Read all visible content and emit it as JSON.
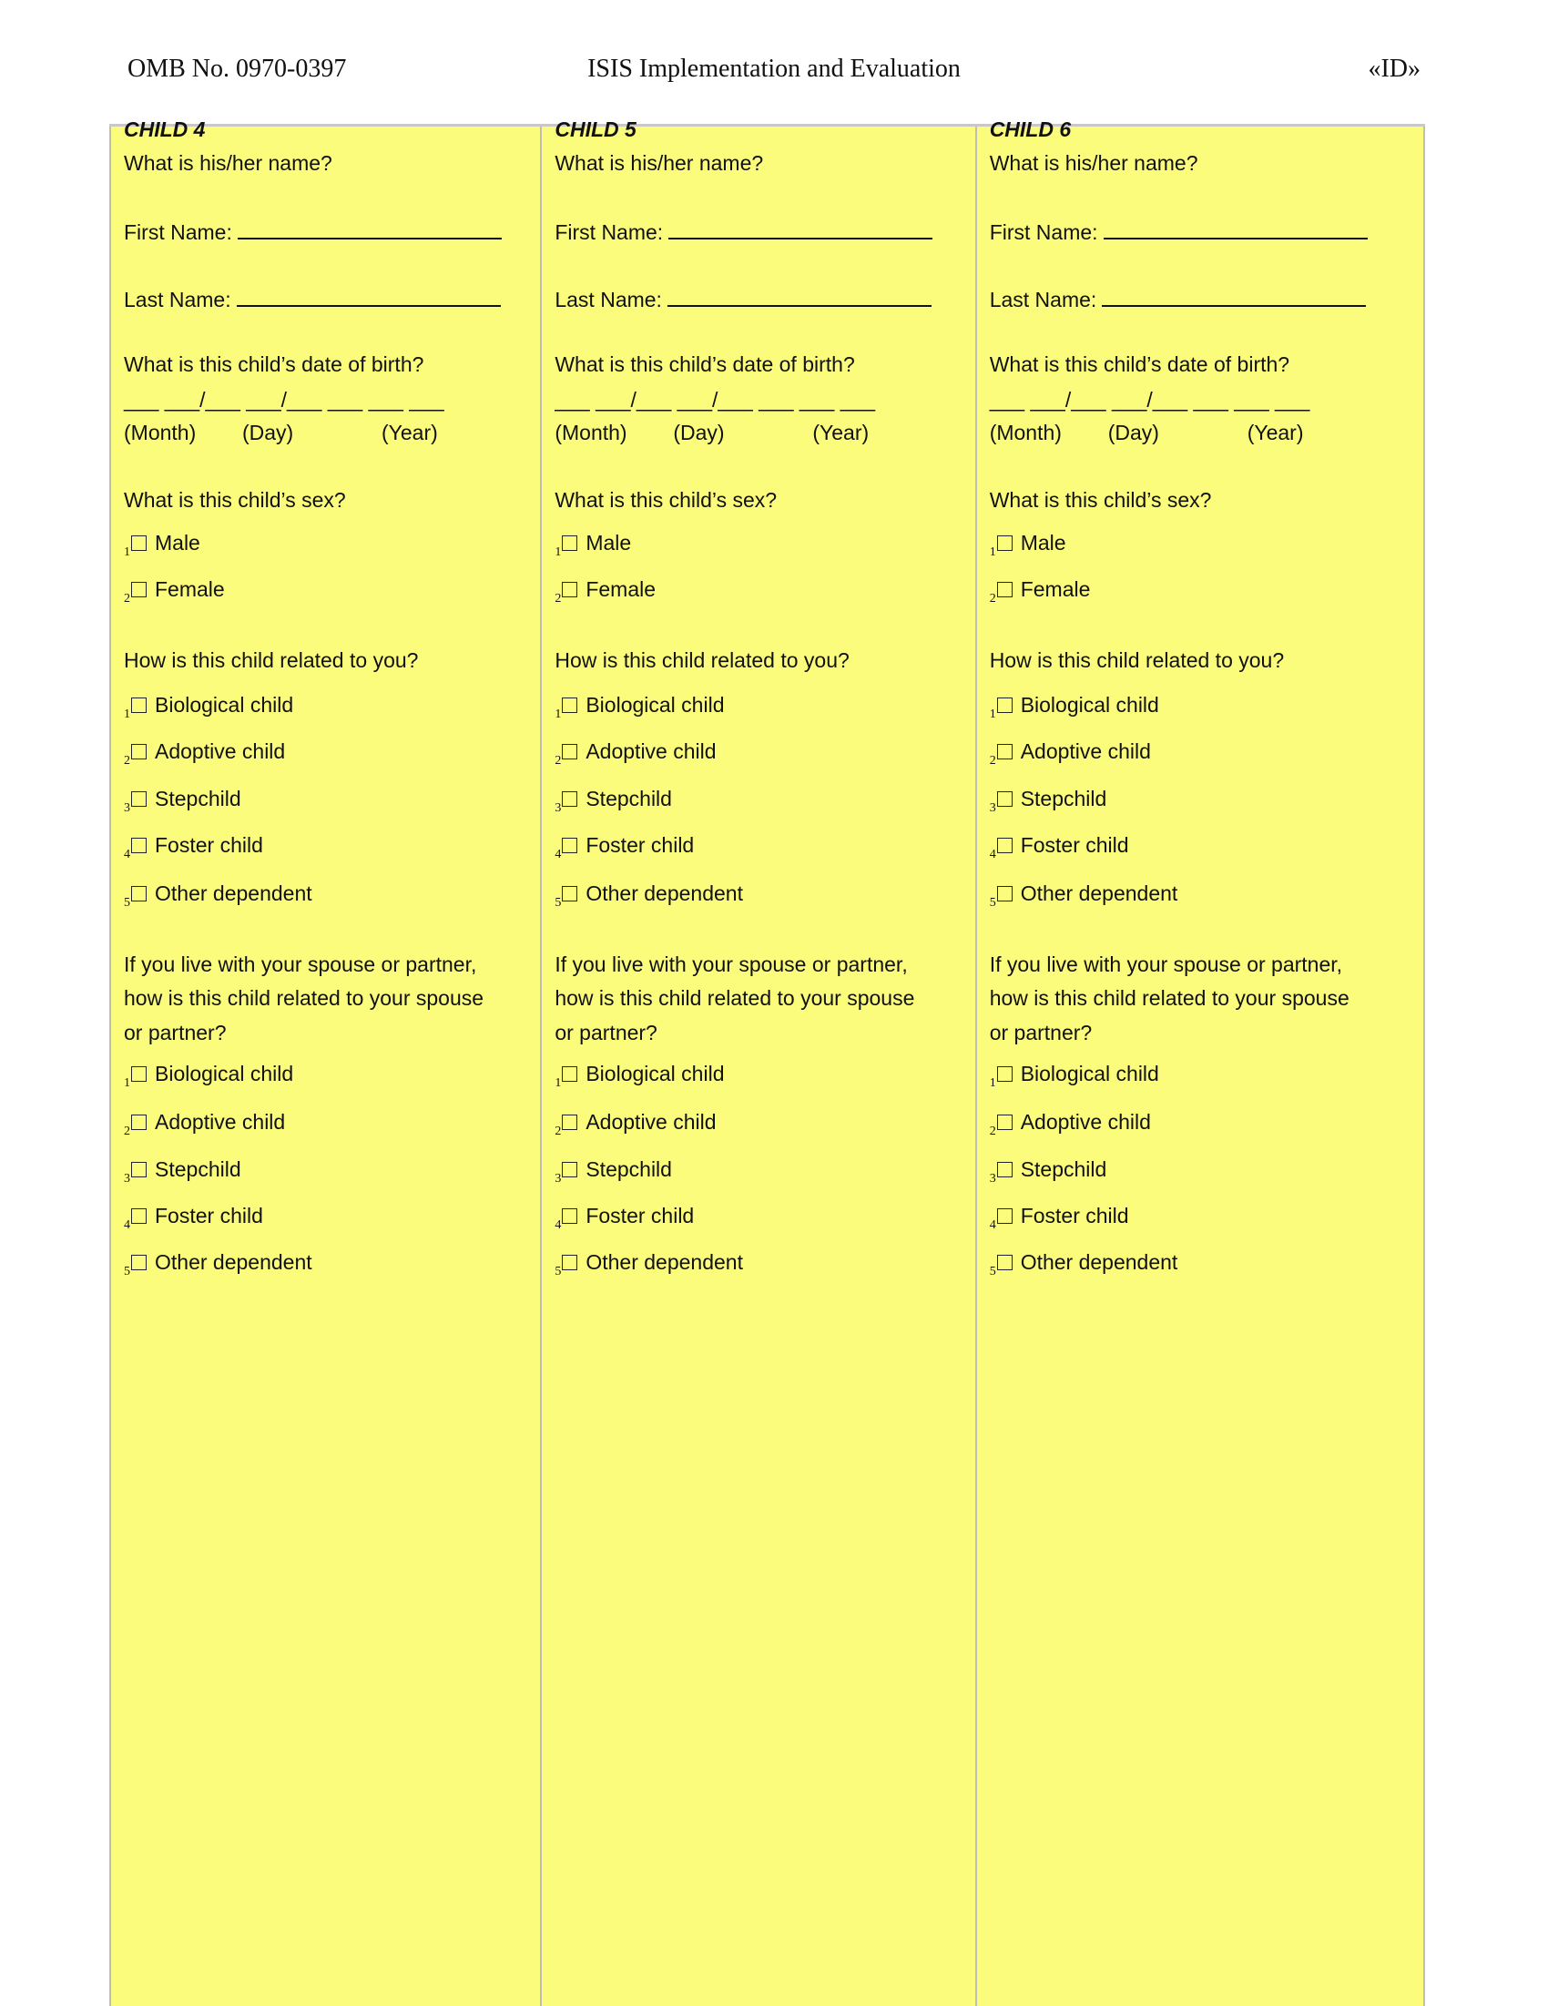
{
  "header": {
    "omb": "OMB No. 0970-0397",
    "title": "ISIS Implementation and Evaluation",
    "id": "«ID»"
  },
  "colors": {
    "column_bg": "#fcfc7c",
    "border": "#bdbdbd"
  },
  "form": {
    "name_question": "What is his/her name?",
    "first_name_label": "First Name:",
    "last_name_label": "Last Name:",
    "dob_question": "What is this child’s date of birth?",
    "dob_blanks": "___  ___/___  ___/___  ___  ___  ___",
    "dob_month": "(Month)",
    "dob_day": "(Day)",
    "dob_year": "(Year)",
    "sex_question": "What is this child’s sex?",
    "sex_options": [
      {
        "num": "1",
        "label": "Male"
      },
      {
        "num": "2",
        "label": "Female"
      }
    ],
    "relation_question": "How is this child related to you?",
    "relation_options": [
      {
        "num": "1",
        "label": "Biological child"
      },
      {
        "num": "2",
        "label": "Adoptive child"
      },
      {
        "num": "3",
        "label": "Stepchild"
      },
      {
        "num": "4",
        "label": "Foster child"
      },
      {
        "num": "5",
        "label": "Other dependent"
      }
    ],
    "spouse_question_lines": [
      "If you live with your spouse or partner,",
      "how is this child related to your spouse",
      "or partner?"
    ]
  },
  "columns": [
    {
      "title": "CHILD 4"
    },
    {
      "title": "CHILD 5"
    },
    {
      "title": "CHILD 6"
    }
  ]
}
